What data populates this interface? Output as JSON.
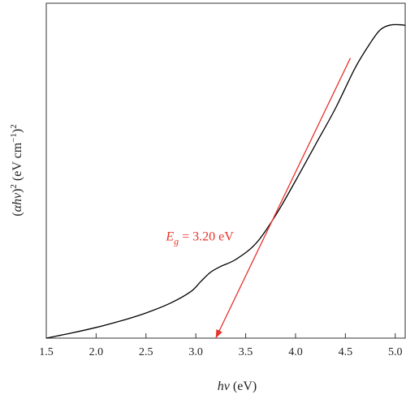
{
  "chart_data": {
    "type": "line",
    "xlabel": {
      "base": "hν",
      "unit": " (eV)"
    },
    "ylabel": {
      "open": "(",
      "alpha": "α",
      "hv": "hν",
      "close": ")",
      "sq": "2",
      "unit_a": " (eV cm",
      "unit_exp": "−1",
      "unit_b": ")",
      "unit_sq": "2"
    },
    "xlim": [
      1.5,
      5.1
    ],
    "x_ticks": [
      "1.5",
      "2.0",
      "2.5",
      "3.0",
      "3.5",
      "4.0",
      "4.5",
      "5.0"
    ],
    "y_ticks_shown": false,
    "y_range": [
      0,
      1
    ],
    "grid": false,
    "series": [
      {
        "color": "#000000",
        "points": [
          [
            1.5,
            0.0
          ],
          [
            1.75,
            0.016
          ],
          [
            2.0,
            0.034
          ],
          [
            2.25,
            0.055
          ],
          [
            2.5,
            0.08
          ],
          [
            2.75,
            0.112
          ],
          [
            2.95,
            0.148
          ],
          [
            3.05,
            0.18
          ],
          [
            3.15,
            0.21
          ],
          [
            3.25,
            0.228
          ],
          [
            3.4,
            0.25
          ],
          [
            3.6,
            0.3
          ],
          [
            3.8,
            0.39
          ],
          [
            4.0,
            0.5
          ],
          [
            4.2,
            0.615
          ],
          [
            4.4,
            0.73
          ],
          [
            4.6,
            0.86
          ],
          [
            4.75,
            0.938
          ],
          [
            4.85,
            0.98
          ],
          [
            4.95,
            0.995
          ],
          [
            5.05,
            0.996
          ],
          [
            5.1,
            0.994
          ]
        ]
      }
    ],
    "tangent_line": {
      "color": "#e8322a",
      "from": [
        4.55,
        0.89
      ],
      "to": [
        3.2,
        0.0
      ]
    },
    "annotation": {
      "symbol": "E",
      "subscript": "g",
      "value": " = 3.20 eV",
      "color": "#e8322a",
      "x": 2.7,
      "y": 0.31
    }
  }
}
